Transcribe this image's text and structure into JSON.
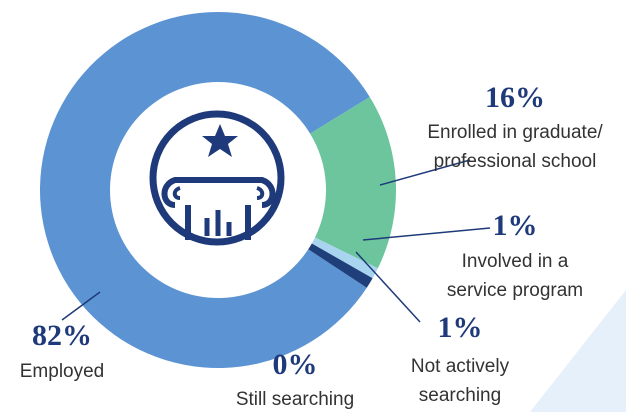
{
  "chart_data": {
    "type": "donut",
    "categories": [
      [
        "Employed"
      ],
      [
        "Enrolled in graduate/",
        "professional school"
      ],
      [
        "Involved in a",
        "service program"
      ],
      [
        "Not actively",
        "searching"
      ],
      [
        "Still searching"
      ]
    ],
    "values": [
      82,
      16,
      1,
      1,
      0
    ],
    "value_labels": [
      "82%",
      "16%",
      "1%",
      "1%",
      "0%"
    ],
    "colors": [
      "#5b93d3",
      "#6cc59c",
      "#a8d4f0",
      "#1f3f7a",
      "#1f3f7a"
    ]
  }
}
